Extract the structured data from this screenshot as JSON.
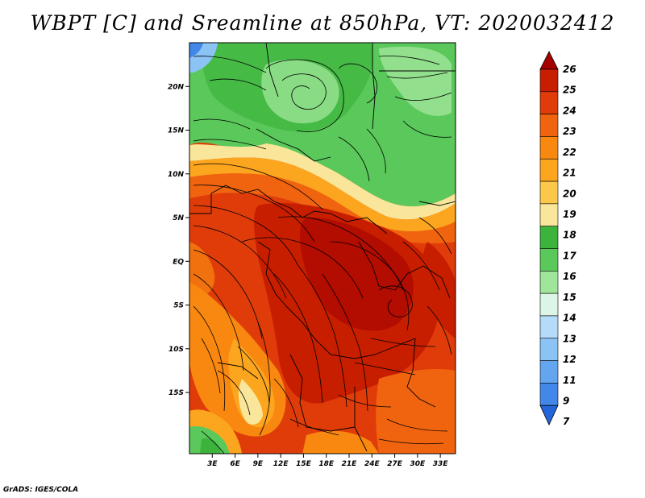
{
  "title": "WBPT [C] and Sreamline at 850hPa, VT: 2020032412",
  "credit": "GrADS: IGES/COLA",
  "map": {
    "lat_range": [
      -22,
      25
    ],
    "lon_range": [
      0,
      35
    ],
    "lat_ticks": [
      {
        "label": "20N",
        "lat": 20
      },
      {
        "label": "15N",
        "lat": 15
      },
      {
        "label": "10N",
        "lat": 10
      },
      {
        "label": "5N",
        "lat": 5
      },
      {
        "label": "EQ",
        "lat": 0
      },
      {
        "label": "5S",
        "lat": -5
      },
      {
        "label": "10S",
        "lat": -10
      },
      {
        "label": "15S",
        "lat": -15
      }
    ],
    "lon_ticks": [
      {
        "label": "3E",
        "lon": 3
      },
      {
        "label": "6E",
        "lon": 6
      },
      {
        "label": "9E",
        "lon": 9
      },
      {
        "label": "12E",
        "lon": 12
      },
      {
        "label": "15E",
        "lon": 15
      },
      {
        "label": "18E",
        "lon": 18
      },
      {
        "label": "21E",
        "lon": 21
      },
      {
        "label": "24E",
        "lon": 24
      },
      {
        "label": "27E",
        "lon": 27
      },
      {
        "label": "30E",
        "lon": 30
      },
      {
        "label": "33E",
        "lon": 33
      }
    ]
  },
  "colorbar": {
    "labels": [
      "26",
      "25",
      "24",
      "23",
      "22",
      "21",
      "20",
      "19",
      "18",
      "17",
      "16",
      "15",
      "14",
      "13",
      "12",
      "11",
      "9",
      "7"
    ],
    "colors": [
      "#a50000",
      "#c81e00",
      "#e03c0a",
      "#f0640f",
      "#f8880f",
      "#fca51e",
      "#fbc84a",
      "#fae69a",
      "#3cb43c",
      "#5ac85a",
      "#a0e69a",
      "#dcf5e6",
      "#b4dcfa",
      "#8cc3f5",
      "#64a5f0",
      "#4188e8",
      "#2366dc"
    ]
  },
  "legend_colors": {
    "green_dark": "#3cb43c",
    "green_light": "#a0e69a",
    "blue": "#4188e8",
    "streamline": "#000000"
  }
}
